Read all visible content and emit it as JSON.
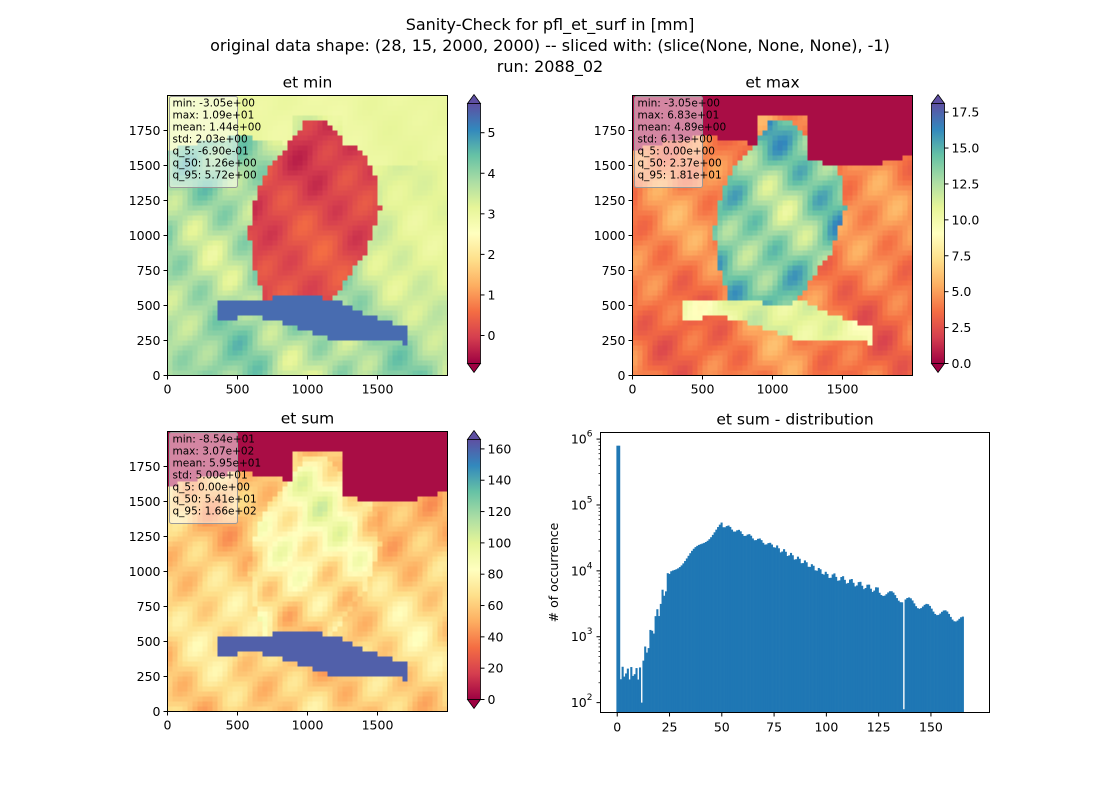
{
  "suptitle": {
    "line1": "Sanity-Check for pfl_et_surf in [mm]",
    "line2": "original data shape: (28, 15, 2000, 2000) -- sliced with: (slice(None, None, None), -1)",
    "line3": "run: 2088_02"
  },
  "colormap": "Spectral",
  "chart_data": [
    {
      "type": "heatmap",
      "title": "et min",
      "xticks": [
        0,
        500,
        1000,
        1500
      ],
      "yticks": [
        0,
        250,
        500,
        750,
        1000,
        1250,
        1500,
        1750
      ],
      "xlim": [
        0,
        2000
      ],
      "ylim": [
        0,
        2000
      ],
      "colorbar": {
        "ticks": [
          0,
          1,
          2,
          3,
          4,
          5
        ],
        "tick_labels": [
          "0",
          "1",
          "2",
          "3",
          "4",
          "5"
        ],
        "range": [
          -0.69,
          5.72
        ],
        "extend": "both"
      },
      "stats": [
        "min: -3.05e+00",
        "max: 1.09e+01",
        "mean: 1.44e+00",
        "std: 2.03e+00",
        "q_5: -6.90e-01",
        "q_50: 1.26e+00",
        "q_95: 5.72e+00"
      ]
    },
    {
      "type": "heatmap",
      "title": "et max",
      "xticks": [
        0,
        500,
        1000,
        1500
      ],
      "yticks": [
        0,
        250,
        500,
        750,
        1000,
        1250,
        1500,
        1750
      ],
      "xlim": [
        0,
        2000
      ],
      "ylim": [
        0,
        2000
      ],
      "colorbar": {
        "ticks": [
          0,
          2.5,
          5,
          7.5,
          10,
          12.5,
          15,
          17.5
        ],
        "tick_labels": [
          "0.0",
          "2.5",
          "5.0",
          "7.5",
          "10.0",
          "12.5",
          "15.0",
          "17.5"
        ],
        "range": [
          0,
          18.1
        ],
        "extend": "both"
      },
      "stats": [
        "min: -3.05e+00",
        "max: 6.83e+01",
        "mean: 4.89e+00",
        "std: 6.13e+00",
        "q_5: 0.00e+00",
        "q_50: 2.37e+00",
        "q_95: 1.81e+01"
      ]
    },
    {
      "type": "heatmap",
      "title": "et sum",
      "xticks": [
        0,
        500,
        1000,
        1500
      ],
      "yticks": [
        0,
        250,
        500,
        750,
        1000,
        1250,
        1500,
        1750
      ],
      "xlim": [
        0,
        2000
      ],
      "ylim": [
        0,
        2000
      ],
      "colorbar": {
        "ticks": [
          0,
          20,
          40,
          60,
          80,
          100,
          120,
          140,
          160
        ],
        "tick_labels": [
          "0",
          "20",
          "40",
          "60",
          "80",
          "100",
          "120",
          "140",
          "160"
        ],
        "range": [
          0,
          166
        ],
        "extend": "both"
      },
      "stats": [
        "min: -8.54e+01",
        "max: 3.07e+02",
        "mean: 5.95e+01",
        "std: 5.00e+01",
        "q_5: 0.00e+00",
        "q_50: 5.41e+01",
        "q_95: 1.66e+02"
      ]
    },
    {
      "type": "bar",
      "title": "et sum - distribution",
      "ylabel": "# of occurrence",
      "yscale": "log",
      "xlim": [
        -8,
        178
      ],
      "ylim_log10": [
        1.85,
        6.1
      ],
      "xticks": [
        0,
        25,
        50,
        75,
        100,
        125,
        150
      ],
      "yticks": [
        {
          "exp": 2,
          "label_base": "10",
          "label_exp": "2"
        },
        {
          "exp": 3,
          "label_base": "10",
          "label_exp": "3"
        },
        {
          "exp": 4,
          "label_base": "10",
          "label_exp": "4"
        },
        {
          "exp": 5,
          "label_base": "10",
          "label_exp": "5"
        },
        {
          "exp": 6,
          "label_base": "10",
          "label_exp": "6"
        }
      ],
      "bin_width": 0.83,
      "bin_centers": [
        0,
        25,
        40,
        50,
        60,
        75,
        100,
        125,
        137,
        150,
        164
      ],
      "counts_approx": [
        800000,
        3000,
        30000,
        55000,
        35000,
        20000,
        9000,
        5000,
        100,
        4000,
        2000
      ]
    }
  ]
}
